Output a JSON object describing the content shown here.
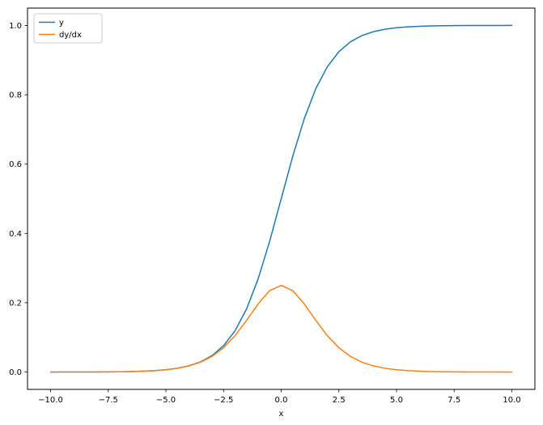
{
  "figure": {
    "background": "#ffffff",
    "border_color": "#000000"
  },
  "chart_data": {
    "type": "line",
    "title": "",
    "xlabel": "x",
    "ylabel": "",
    "grid": false,
    "xlim": [
      -11,
      11
    ],
    "ylim": [
      -0.05,
      1.05
    ],
    "xticks": [
      -10.0,
      -7.5,
      -5.0,
      -2.5,
      0.0,
      2.5,
      5.0,
      7.5,
      10.0
    ],
    "xtick_labels": [
      "−10.0",
      "−7.5",
      "−5.0",
      "−2.5",
      "0.0",
      "2.5",
      "5.0",
      "7.5",
      "10.0"
    ],
    "yticks": [
      0.0,
      0.2,
      0.4,
      0.6,
      0.8,
      1.0
    ],
    "ytick_labels": [
      "0.0",
      "0.2",
      "0.4",
      "0.6",
      "0.8",
      "1.0"
    ],
    "legend": {
      "position": "upper left",
      "border_color": "#cccccc",
      "background": "#ffffff"
    },
    "x": [
      -10,
      -9.5,
      -9,
      -8.5,
      -8,
      -7.5,
      -7,
      -6.5,
      -6,
      -5.5,
      -5,
      -4.5,
      -4,
      -3.5,
      -3,
      -2.5,
      -2,
      -1.5,
      -1,
      -0.5,
      0,
      0.5,
      1,
      1.5,
      2,
      2.5,
      3,
      3.5,
      4,
      4.5,
      5,
      5.5,
      6,
      6.5,
      7,
      7.5,
      8,
      8.5,
      9,
      9.5,
      10
    ],
    "series": [
      {
        "name": "y",
        "color": "#1f77b4",
        "values": [
          5e-05,
          7e-05,
          0.00012,
          0.0002,
          0.00034,
          0.00055,
          0.00091,
          0.0015,
          0.00247,
          0.00407,
          0.00669,
          0.01099,
          0.01799,
          0.02931,
          0.04743,
          0.07586,
          0.1192,
          0.18243,
          0.26894,
          0.37754,
          0.5,
          0.62246,
          0.73106,
          0.81757,
          0.8808,
          0.92414,
          0.95257,
          0.97069,
          0.98201,
          0.98901,
          0.99331,
          0.99593,
          0.99753,
          0.9985,
          0.99909,
          0.99945,
          0.99966,
          0.9998,
          0.99988,
          0.99993,
          0.99995
        ]
      },
      {
        "name": "dy/dx",
        "color": "#ff7f0e",
        "values": [
          5e-05,
          7e-05,
          0.00012,
          0.0002,
          0.00033,
          0.00055,
          0.00091,
          0.0015,
          0.00246,
          0.00405,
          0.00665,
          0.01087,
          0.01766,
          0.02845,
          0.04518,
          0.0701,
          0.10499,
          0.14915,
          0.19661,
          0.235,
          0.25,
          0.235,
          0.19661,
          0.14915,
          0.10499,
          0.0701,
          0.04518,
          0.02845,
          0.01766,
          0.01087,
          0.00665,
          0.00405,
          0.00246,
          0.0015,
          0.00091,
          0.00055,
          0.00033,
          0.0002,
          0.00012,
          7e-05,
          5e-05
        ]
      }
    ]
  }
}
